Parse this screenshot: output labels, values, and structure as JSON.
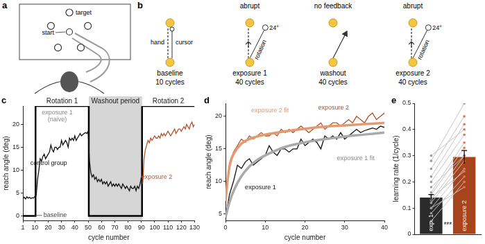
{
  "panel_a": {
    "label": "a",
    "target": "target",
    "start": "start"
  },
  "panel_b": {
    "label": "b",
    "hand": "hand",
    "cursor": "cursor",
    "stages": [
      {
        "name": "baseline",
        "cycles": "10 cycles"
      },
      {
        "header": "abrupt",
        "name": "exposure 1",
        "cycles": "40 cycles",
        "rotation": "rotation",
        "angle": "24°"
      },
      {
        "header": "no feedback",
        "name": "washout",
        "cycles": "40 cycles"
      },
      {
        "header": "abrupt",
        "name": "exposure 2",
        "cycles": "40 cycles",
        "rotation": "rotation",
        "angle": "24°"
      }
    ]
  },
  "chart_data": [
    {
      "panel_label": "c",
      "type": "line",
      "x_label": "cycle number",
      "y_label": "reach angle (deg)",
      "xlim": [
        1,
        130
      ],
      "xticks": [
        1,
        10,
        20,
        30,
        40,
        50,
        60,
        70,
        80,
        90,
        100,
        110,
        120,
        130
      ],
      "ylim": [
        -1,
        24
      ],
      "yticks": [
        0,
        5,
        10,
        15,
        20
      ],
      "grid": false,
      "regions": [
        {
          "text": "Rotation 1",
          "x": [
            10.5,
            50.5
          ]
        },
        {
          "text": "Washout period",
          "x": [
            50.5,
            90.5
          ],
          "color": "#d6d6d6"
        },
        {
          "text": "Rotation 2",
          "x": [
            90.5,
            130
          ]
        }
      ],
      "annotations": [
        "baseline",
        "exposure 1\n(naive)"
      ],
      "series": [
        {
          "name": "control group",
          "color": "#111111",
          "line_style": "solid",
          "x": [
            1,
            2,
            3,
            4,
            5,
            6,
            7,
            8,
            9,
            10,
            11,
            12,
            13,
            14,
            15,
            16,
            17,
            18,
            19,
            20,
            21,
            22,
            23,
            24,
            25,
            26,
            27,
            28,
            29,
            30,
            31,
            32,
            33,
            34,
            35,
            36,
            37,
            38,
            39,
            40,
            41,
            42,
            43,
            44,
            45,
            46,
            47,
            48,
            49,
            50,
            51,
            52,
            53,
            54,
            55,
            56,
            57,
            58,
            59,
            60,
            61,
            62,
            63,
            64,
            65,
            66,
            67,
            68,
            69,
            70,
            71,
            72,
            73,
            74,
            75,
            76,
            77,
            78,
            79,
            80,
            81,
            82,
            83,
            84,
            85,
            86,
            87,
            88,
            89,
            90
          ],
          "values": [
            3.8,
            4.1,
            3.7,
            4.2,
            3.9,
            4.1,
            3.8,
            4.0,
            3.9,
            4.3,
            4.5,
            8,
            10,
            12.5,
            12,
            13,
            13.5,
            12.5,
            13,
            13.5,
            14,
            15.5,
            14.5,
            14,
            15,
            15,
            14.5,
            15,
            15,
            16.5,
            15.5,
            16,
            16.5,
            16,
            15,
            17,
            16.5,
            17,
            16.5,
            17.5,
            16.5,
            17,
            17.5,
            18,
            17.5,
            17.8,
            18,
            18.2,
            18,
            18.5,
            12,
            9.5,
            8.5,
            9,
            8,
            8.5,
            7.5,
            8,
            7.5,
            8,
            7,
            7.5,
            7,
            7.5,
            6.5,
            7,
            7.5,
            6.5,
            7,
            6.5,
            7,
            6.5,
            7,
            6.5,
            6,
            7,
            6.5,
            6,
            6.5,
            6,
            5.5,
            6.5,
            6,
            6,
            6.5,
            5.5,
            6.5,
            6,
            7,
            8.5
          ]
        },
        {
          "name": "exposure 2",
          "color": "#b5532b",
          "line_style": "solid",
          "x": [
            91,
            92,
            93,
            94,
            95,
            96,
            97,
            98,
            99,
            100,
            101,
            102,
            103,
            104,
            105,
            106,
            107,
            108,
            109,
            110,
            111,
            112,
            113,
            114,
            115,
            116,
            117,
            118,
            119,
            120,
            121,
            122,
            123,
            124,
            125,
            126,
            127,
            128,
            129,
            130
          ],
          "values": [
            7,
            12.5,
            14.5,
            15.5,
            16.5,
            16,
            17,
            16.5,
            17,
            17.5,
            17,
            17,
            17.5,
            17,
            18,
            17.5,
            18,
            17.5,
            18,
            18.5,
            18,
            17.5,
            18,
            18.5,
            19,
            18,
            18.5,
            19,
            19,
            18.5,
            19,
            19.5,
            19,
            20,
            19.5,
            19,
            20,
            20.5,
            19.5,
            20
          ]
        },
        {
          "color": "#000000",
          "line_style": "thick",
          "x": [
            1,
            10.5,
            10.5,
            50.5,
            50.5,
            90.5,
            90.5,
            130
          ],
          "values": [
            0,
            0,
            24,
            24,
            0,
            0,
            24,
            24
          ]
        }
      ]
    },
    {
      "panel_label": "d",
      "type": "line",
      "x_label": "cycle number",
      "y_label": "reach angle (deg)",
      "xlim": [
        0,
        40
      ],
      "xticks": [
        0,
        10,
        20,
        30,
        40
      ],
      "ylim": [
        4,
        22
      ],
      "yticks": [
        5,
        10,
        15,
        20
      ],
      "grid": false,
      "series": [
        {
          "name": "exposure 1 fit",
          "color": "#a9a9a9",
          "line_style": "smooth",
          "x": [
            0,
            1,
            2,
            4,
            6,
            8,
            10,
            15,
            20,
            25,
            30,
            35,
            40
          ],
          "values": [
            4.5,
            6.8,
            8.5,
            10.8,
            12.3,
            13.3,
            14,
            15.3,
            16,
            16.5,
            16.9,
            17.2,
            17.5
          ]
        },
        {
          "name": "exposure 2 fit",
          "color": "#e39a72",
          "line_style": "smooth",
          "x": [
            0,
            1,
            2,
            4,
            6,
            8,
            10,
            15,
            20,
            25,
            30,
            35,
            40
          ],
          "values": [
            7,
            12.3,
            14.2,
            15.8,
            16.5,
            16.9,
            17.2,
            17.7,
            18.1,
            18.4,
            18.6,
            18.8,
            19
          ]
        },
        {
          "name": "exposure 1",
          "color": "#111111",
          "line_style": "solid",
          "x": [
            0,
            1,
            2,
            3,
            4,
            5,
            6,
            7,
            8,
            9,
            10,
            11,
            12,
            13,
            14,
            15,
            16,
            17,
            18,
            19,
            20,
            21,
            22,
            23,
            24,
            25,
            26,
            27,
            28,
            29,
            30,
            31,
            32,
            33,
            34,
            35,
            36,
            37,
            38,
            39,
            40
          ],
          "values": [
            4.5,
            8,
            10,
            12.5,
            12,
            13,
            13.5,
            12.5,
            13,
            13.5,
            14,
            15.5,
            14.5,
            14,
            15,
            15,
            14.5,
            15,
            15,
            16.5,
            15.5,
            16,
            16.5,
            16,
            15,
            17,
            16.5,
            17,
            16.5,
            17.5,
            16.5,
            17,
            17.5,
            18,
            17.5,
            17.8,
            18,
            18.2,
            18,
            18.5,
            18.3
          ]
        },
        {
          "name": "exposure 2",
          "color": "#b5532b",
          "line_style": "solid",
          "x": [
            0,
            1,
            2,
            3,
            4,
            5,
            6,
            7,
            8,
            9,
            10,
            11,
            12,
            13,
            14,
            15,
            16,
            17,
            18,
            19,
            20,
            21,
            22,
            23,
            24,
            25,
            26,
            27,
            28,
            29,
            30,
            31,
            32,
            33,
            34,
            35,
            36,
            37,
            38,
            39,
            40
          ],
          "values": [
            7,
            12.5,
            14.5,
            15.5,
            16.5,
            16,
            17,
            16.5,
            17,
            17.5,
            17,
            17,
            17.5,
            17,
            18,
            17.5,
            18,
            17.5,
            18,
            18.5,
            18,
            17.5,
            18,
            18.5,
            19,
            18,
            18.5,
            19,
            19,
            18.5,
            19,
            19.5,
            19,
            20,
            19.5,
            19,
            20,
            20.5,
            19.5,
            20,
            20.5
          ]
        }
      ]
    },
    {
      "panel_label": "e",
      "type": "bar",
      "y_label": "learning rate (1/cycle)",
      "categories": [
        "exp. 1",
        "exposure 2"
      ],
      "values": [
        0.14,
        0.295
      ],
      "error": [
        0.012,
        0.025
      ],
      "colors": [
        "#2b2b2b",
        "#a8441c"
      ],
      "ylim": [
        0,
        0.5
      ],
      "yticks": [
        0,
        0.1,
        0.2,
        0.3,
        0.4,
        0.5
      ],
      "grid": false,
      "tick_labels": "y",
      "individual_values": [
        [
          0.05,
          0.2
        ],
        [
          0.08,
          0.22
        ],
        [
          0.1,
          0.25
        ],
        [
          0.12,
          0.28
        ],
        [
          0.13,
          0.3
        ],
        [
          0.14,
          0.24
        ],
        [
          0.15,
          0.33
        ],
        [
          0.16,
          0.35
        ],
        [
          0.18,
          0.3
        ],
        [
          0.2,
          0.38
        ],
        [
          0.22,
          0.42
        ],
        [
          0.25,
          0.45
        ],
        [
          0.28,
          0.5
        ],
        [
          0.1,
          0.18
        ],
        [
          0.3,
          0.4
        ]
      ],
      "annotations": [
        "***"
      ]
    }
  ]
}
